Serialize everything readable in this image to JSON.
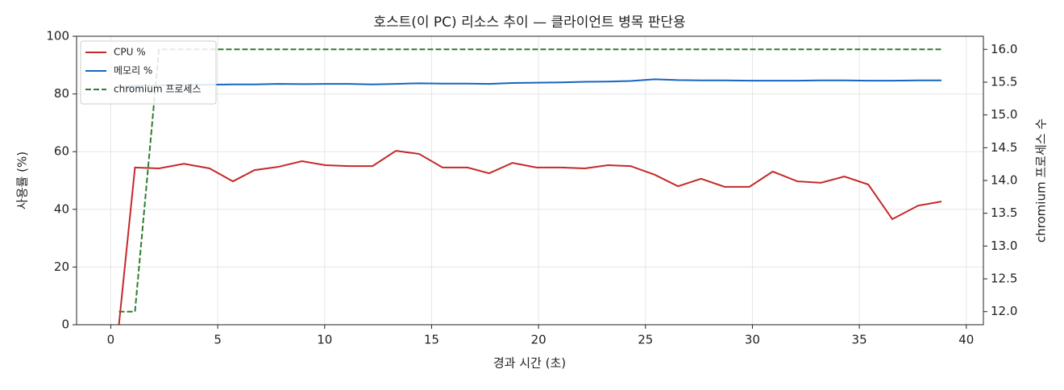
{
  "chart_data": {
    "type": "line",
    "title": "호스트(이 PC) 리소스 추이 — 클라이언트 병목 판단용",
    "x_label": "경과 시간 (초)",
    "y_label": "사용률 (%)",
    "y2_label": "chromium 프로세스 수",
    "x": [
      0.38,
      1.13,
      2.25,
      3.42,
      4.62,
      5.71,
      6.72,
      7.81,
      8.94,
      10.03,
      11.12,
      12.24,
      13.33,
      14.42,
      15.51,
      16.68,
      17.69,
      18.78,
      19.9,
      21.07,
      22.16,
      23.25,
      24.3,
      25.43,
      26.52,
      27.6,
      28.7,
      29.86,
      30.95,
      32.1,
      33.2,
      34.3,
      35.42,
      36.54,
      37.75,
      38.84
    ],
    "series": [
      {
        "name": "CPU %",
        "color": "#c62828",
        "values": [
          0,
          54.5,
          54.2,
          55.8,
          54.2,
          49.7,
          53.6,
          54.7,
          56.7,
          55.3,
          55.0,
          55.0,
          60.3,
          59.2,
          54.5,
          54.5,
          52.5,
          56.1,
          54.5,
          54.5,
          54.2,
          55.3,
          55.0,
          52.0,
          48.0,
          50.6,
          47.8,
          47.8,
          53.1,
          49.7,
          49.2,
          51.4,
          48.6,
          36.6,
          41.3,
          42.7
        ]
      },
      {
        "name": "메모리 %",
        "color": "#1565c0",
        "values": [
          82.5,
          82.8,
          83.0,
          83.1,
          83.2,
          83.3,
          83.3,
          83.5,
          83.4,
          83.5,
          83.5,
          83.3,
          83.5,
          83.7,
          83.6,
          83.6,
          83.5,
          83.8,
          83.9,
          84.0,
          84.2,
          84.3,
          84.5,
          85.1,
          84.8,
          84.7,
          84.7,
          84.6,
          84.6,
          84.6,
          84.7,
          84.7,
          84.6,
          84.6,
          84.7,
          84.7
        ]
      },
      {
        "name": "chromium 프로세스",
        "color": "#2e7d32",
        "dashed": true,
        "axis": "y2",
        "values": [
          12,
          12,
          16,
          16,
          16,
          16,
          16,
          16,
          16,
          16,
          16,
          16,
          16,
          16,
          16,
          16,
          16,
          16,
          16,
          16,
          16,
          16,
          16,
          16,
          16,
          16,
          16,
          16,
          16,
          16,
          16,
          16,
          16,
          16,
          16,
          16
        ]
      }
    ],
    "xlim": [
      -1.6,
      40.8
    ],
    "xticks": [
      0,
      5,
      10,
      15,
      20,
      25,
      30,
      35,
      40
    ],
    "ylim": [
      0,
      100
    ],
    "yticks": [
      0,
      20,
      40,
      60,
      80,
      100
    ],
    "y2lim": [
      11.8,
      16.2
    ],
    "y2ticks": [
      {
        "value": 12,
        "label": "12.0"
      },
      12.5,
      {
        "value": 13,
        "label": "13.0"
      },
      13.5,
      {
        "value": 14,
        "label": "14.0"
      },
      14.5,
      {
        "value": 15,
        "label": "15.0"
      },
      15.5,
      {
        "value": 16,
        "label": "16.0"
      }
    ],
    "grid": true,
    "legend": "upper left"
  }
}
